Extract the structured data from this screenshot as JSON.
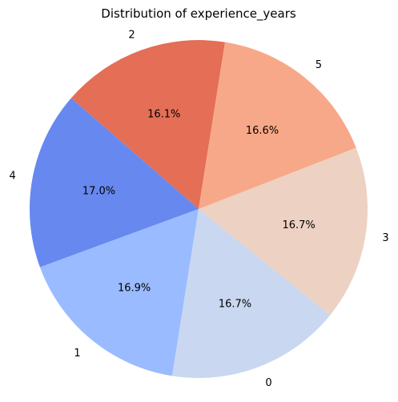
{
  "chart_data": {
    "type": "pie",
    "title": "Distribution of experience_years",
    "start_angle_deg": 81,
    "direction": "counterclockwise",
    "slices": [
      {
        "label": "2",
        "value": 16.1,
        "pct_label": "16.1%",
        "color": "#e46e56"
      },
      {
        "label": "4",
        "value": 17.0,
        "pct_label": "17.0%",
        "color": "#6788ee"
      },
      {
        "label": "1",
        "value": 16.9,
        "pct_label": "16.9%",
        "color": "#9abbff"
      },
      {
        "label": "0",
        "value": 16.7,
        "pct_label": "16.7%",
        "color": "#c9d7f0"
      },
      {
        "label": "3",
        "value": 16.7,
        "pct_label": "16.7%",
        "color": "#edd1c2"
      },
      {
        "label": "5",
        "value": 16.6,
        "pct_label": "16.6%",
        "color": "#f7a889"
      }
    ]
  }
}
